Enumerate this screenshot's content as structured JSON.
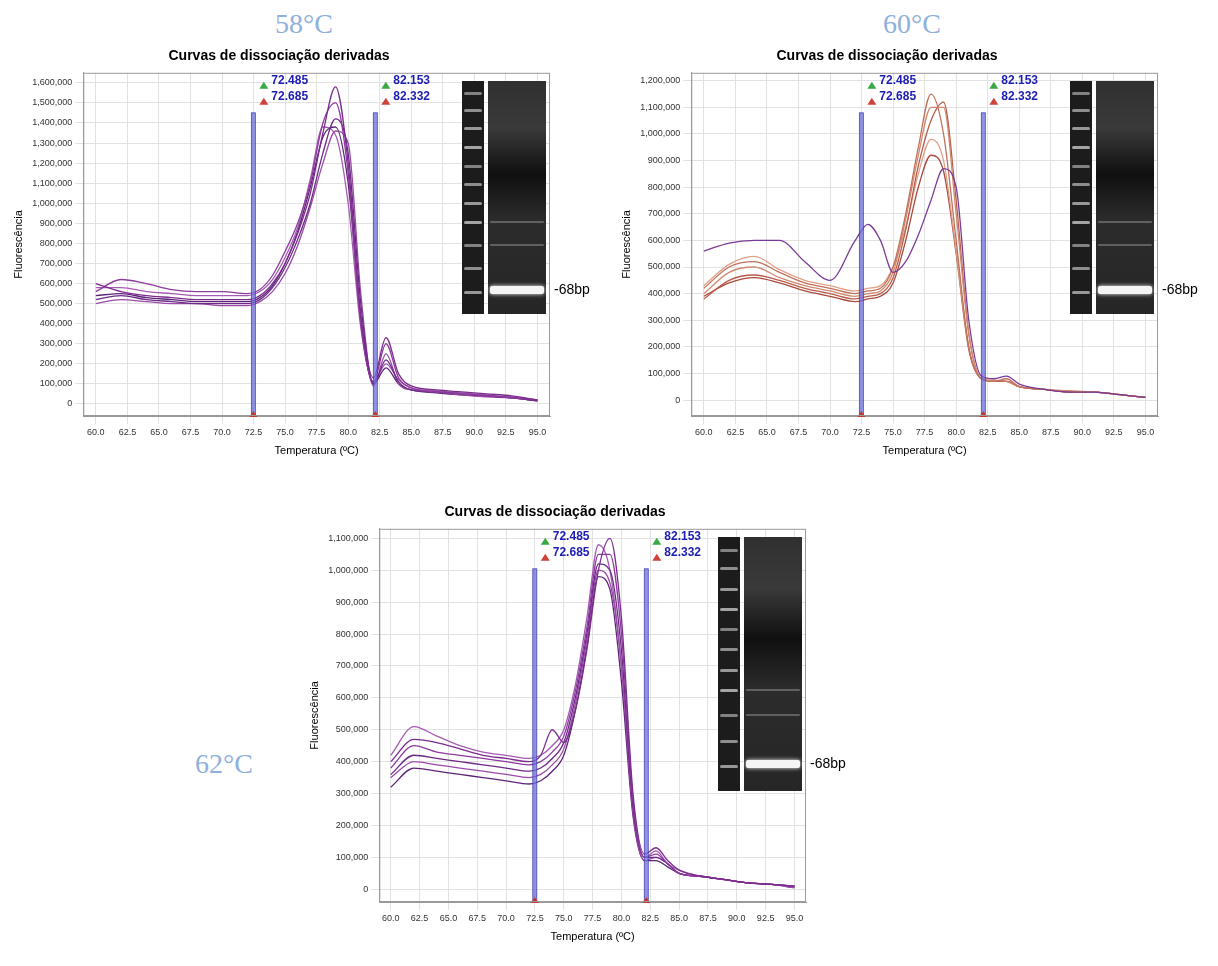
{
  "chart_data": [
    {
      "type": "line",
      "label": "58°C",
      "title": "Curvas de dissociação derivadas",
      "xlabel": "Temperatura (ºC)",
      "ylabel": "Fluorescência",
      "grid": true,
      "x": [
        60,
        62,
        64,
        66,
        68,
        70,
        72,
        73,
        74,
        75,
        76,
        77,
        78,
        79,
        80,
        81,
        82,
        83,
        84,
        85,
        87,
        89,
        91,
        93,
        95
      ],
      "xlim": [
        59,
        96
      ],
      "xticks": [
        {
          "value": 60,
          "label": "60.0"
        },
        {
          "value": 62.5,
          "label": "62.5"
        },
        {
          "value": 65,
          "label": "65.0"
        },
        {
          "value": 67.5,
          "label": "67.5"
        },
        {
          "value": 70,
          "label": "70.0"
        },
        {
          "value": 72.5,
          "label": "72.5"
        },
        {
          "value": 75,
          "label": "75.0"
        },
        {
          "value": 77.5,
          "label": "77.5"
        },
        {
          "value": 80,
          "label": "80.0"
        },
        {
          "value": 82.5,
          "label": "82.5"
        },
        {
          "value": 85,
          "label": "85.0"
        },
        {
          "value": 87.5,
          "label": "87.5"
        },
        {
          "value": 90,
          "label": "90.0"
        },
        {
          "value": 92.5,
          "label": "92.5"
        },
        {
          "value": 95,
          "label": "95.0"
        }
      ],
      "ylim": [
        -60000,
        1650000
      ],
      "yticks": [
        0,
        {
          "value": 100000,
          "label": "100,000"
        },
        {
          "value": 200000,
          "label": "200,000"
        },
        {
          "value": 300000,
          "label": "300,000"
        },
        {
          "value": 400000,
          "label": "400,000"
        },
        {
          "value": 500000,
          "label": "500,000"
        },
        {
          "value": 600000,
          "label": "600,000"
        },
        {
          "value": 700000,
          "label": "700,000"
        },
        {
          "value": 800000,
          "label": "800,000"
        },
        {
          "value": 900000,
          "label": "900,000"
        },
        {
          "value": 1000000,
          "label": "1,000,000"
        },
        {
          "value": 1100000,
          "label": "1,100,000"
        },
        {
          "value": 1200000,
          "label": "1,200,000"
        },
        {
          "value": 1300000,
          "label": "1,300,000"
        },
        {
          "value": 1400000,
          "label": "1,400,000"
        },
        {
          "value": 1500000,
          "label": "1,500,000"
        },
        {
          "value": 1600000,
          "label": "1,600,000"
        }
      ],
      "markers": [
        {
          "values": [
            72.485,
            72.685
          ]
        },
        {
          "values": [
            82.153,
            82.332
          ]
        }
      ],
      "gel_label": "-68bp",
      "series": [
        {
          "color": "#7b2d8e",
          "values": [
            600000,
            560000,
            540000,
            530000,
            520000,
            520000,
            520000,
            540000,
            600000,
            700000,
            850000,
            1050000,
            1350000,
            1580000,
            1200000,
            450000,
            130000,
            330000,
            150000,
            90000,
            70000,
            60000,
            50000,
            40000,
            20000
          ]
        },
        {
          "color": "#8e3a9f",
          "values": [
            560000,
            620000,
            600000,
            570000,
            560000,
            560000,
            550000,
            570000,
            640000,
            760000,
            900000,
            1100000,
            1400000,
            1500000,
            1150000,
            400000,
            110000,
            300000,
            130000,
            80000,
            60000,
            50000,
            40000,
            30000,
            20000
          ]
        },
        {
          "color": "#6a2a85",
          "values": [
            520000,
            540000,
            520000,
            510000,
            500000,
            500000,
            500000,
            520000,
            580000,
            680000,
            820000,
            1000000,
            1250000,
            1420000,
            1250000,
            500000,
            100000,
            220000,
            110000,
            70000,
            60000,
            50000,
            40000,
            30000,
            15000
          ]
        },
        {
          "color": "#9b4aa8",
          "values": [
            500000,
            520000,
            510000,
            500000,
            500000,
            490000,
            490000,
            510000,
            560000,
            650000,
            790000,
            980000,
            1200000,
            1360000,
            1300000,
            550000,
            90000,
            250000,
            100000,
            70000,
            60000,
            45000,
            35000,
            30000,
            15000
          ]
        },
        {
          "color": "#5c2478",
          "values": [
            540000,
            550000,
            530000,
            520000,
            510000,
            510000,
            510000,
            530000,
            590000,
            700000,
            860000,
            1080000,
            1330000,
            1380000,
            1100000,
            420000,
            100000,
            180000,
            100000,
            70000,
            55000,
            45000,
            40000,
            30000,
            15000
          ]
        },
        {
          "color": "#a55bb3",
          "values": [
            580000,
            580000,
            560000,
            550000,
            540000,
            540000,
            540000,
            560000,
            620000,
            730000,
            880000,
            1120000,
            1380000,
            1340000,
            1000000,
            380000,
            110000,
            200000,
            120000,
            80000,
            65000,
            55000,
            45000,
            35000,
            20000
          ]
        }
      ]
    },
    {
      "type": "line",
      "label": "60°C",
      "title": "Curvas de dissociação derivadas",
      "xlabel": "Temperatura (ºC)",
      "ylabel": "Fluorescência",
      "grid": true,
      "x": [
        60,
        62,
        64,
        66,
        68,
        70,
        72,
        73,
        74,
        75,
        76,
        77,
        78,
        79,
        80,
        81,
        82,
        83,
        84,
        85,
        87,
        89,
        91,
        93,
        95
      ],
      "xlim": [
        59,
        96
      ],
      "xticks": [
        {
          "value": 60,
          "label": "60.0"
        },
        {
          "value": 62.5,
          "label": "62.5"
        },
        {
          "value": 65,
          "label": "65.0"
        },
        {
          "value": 67.5,
          "label": "67.5"
        },
        {
          "value": 70,
          "label": "70.0"
        },
        {
          "value": 72.5,
          "label": "72.5"
        },
        {
          "value": 75,
          "label": "75.0"
        },
        {
          "value": 77.5,
          "label": "77.5"
        },
        {
          "value": 80,
          "label": "80.0"
        },
        {
          "value": 82.5,
          "label": "82.5"
        },
        {
          "value": 85,
          "label": "85.0"
        },
        {
          "value": 87.5,
          "label": "87.5"
        },
        {
          "value": 90,
          "label": "90.0"
        },
        {
          "value": 92.5,
          "label": "92.5"
        },
        {
          "value": 95,
          "label": "95.0"
        }
      ],
      "ylim": [
        -60000,
        1230000
      ],
      "yticks": [
        0,
        {
          "value": 100000,
          "label": "100,000"
        },
        {
          "value": 200000,
          "label": "200,000"
        },
        {
          "value": 300000,
          "label": "300,000"
        },
        {
          "value": 400000,
          "label": "400,000"
        },
        {
          "value": 500000,
          "label": "500,000"
        },
        {
          "value": 600000,
          "label": "600,000"
        },
        {
          "value": 700000,
          "label": "700,000"
        },
        {
          "value": 800000,
          "label": "800,000"
        },
        {
          "value": 900000,
          "label": "900,000"
        },
        {
          "value": 1000000,
          "label": "1,000,000"
        },
        {
          "value": 1100000,
          "label": "1,100,000"
        },
        {
          "value": 1200000,
          "label": "1,200,000"
        }
      ],
      "markers": [
        {
          "values": [
            72.485,
            72.685
          ]
        },
        {
          "values": [
            82.153,
            82.332
          ]
        }
      ],
      "gel_label": "-68bp",
      "series": [
        {
          "color": "#7b3a96",
          "values": [
            560000,
            590000,
            600000,
            600000,
            520000,
            450000,
            600000,
            660000,
            600000,
            480000,
            520000,
            620000,
            750000,
            870000,
            800000,
            300000,
            90000,
            80000,
            90000,
            60000,
            40000,
            30000,
            30000,
            20000,
            10000
          ]
        },
        {
          "color": "#c0705a",
          "values": [
            420000,
            500000,
            520000,
            480000,
            440000,
            420000,
            400000,
            410000,
            420000,
            500000,
            700000,
            950000,
            1150000,
            1000000,
            600000,
            200000,
            80000,
            70000,
            80000,
            50000,
            40000,
            30000,
            30000,
            20000,
            10000
          ]
        },
        {
          "color": "#d08a70",
          "values": [
            400000,
            480000,
            500000,
            460000,
            430000,
            410000,
            390000,
            400000,
            410000,
            480000,
            680000,
            920000,
            1100000,
            1100000,
            700000,
            250000,
            80000,
            75000,
            70000,
            50000,
            40000,
            35000,
            30000,
            20000,
            10000
          ]
        },
        {
          "color": "#b85c4a",
          "values": [
            380000,
            450000,
            470000,
            450000,
            420000,
            400000,
            380000,
            390000,
            400000,
            460000,
            640000,
            880000,
            1050000,
            1120000,
            750000,
            250000,
            80000,
            70000,
            70000,
            50000,
            40000,
            30000,
            30000,
            20000,
            10000
          ]
        },
        {
          "color": "#e0a088",
          "values": [
            430000,
            510000,
            540000,
            490000,
            450000,
            430000,
            410000,
            420000,
            430000,
            500000,
            650000,
            850000,
            980000,
            900000,
            560000,
            200000,
            80000,
            70000,
            70000,
            50000,
            40000,
            30000,
            30000,
            20000,
            10000
          ]
        },
        {
          "color": "#a84a3c",
          "values": [
            390000,
            440000,
            460000,
            440000,
            410000,
            390000,
            370000,
            380000,
            390000,
            440000,
            600000,
            800000,
            920000,
            860000,
            550000,
            190000,
            80000,
            70000,
            70000,
            50000,
            40000,
            30000,
            30000,
            20000,
            10000
          ]
        }
      ]
    },
    {
      "type": "line",
      "label": "62°C",
      "title": "Curvas de dissociação derivadas",
      "xlabel": "Temperatura (ºC)",
      "ylabel": "Fluorescência",
      "grid": true,
      "x": [
        60,
        62,
        64,
        66,
        68,
        70,
        72,
        73,
        74,
        75,
        76,
        77,
        78,
        79,
        80,
        81,
        82,
        83,
        84,
        85,
        87,
        89,
        91,
        93,
        95
      ],
      "xlim": [
        59,
        96
      ],
      "xticks": [
        {
          "value": 60,
          "label": "60.0"
        },
        {
          "value": 62.5,
          "label": "62.5"
        },
        {
          "value": 65,
          "label": "65.0"
        },
        {
          "value": 67.5,
          "label": "67.5"
        },
        {
          "value": 70,
          "label": "70.0"
        },
        {
          "value": 72.5,
          "label": "72.5"
        },
        {
          "value": 75,
          "label": "75.0"
        },
        {
          "value": 77.5,
          "label": "77.5"
        },
        {
          "value": 80,
          "label": "80.0"
        },
        {
          "value": 82.5,
          "label": "82.5"
        },
        {
          "value": 85,
          "label": "85.0"
        },
        {
          "value": 87.5,
          "label": "87.5"
        },
        {
          "value": 90,
          "label": "90.0"
        },
        {
          "value": 92.5,
          "label": "92.5"
        },
        {
          "value": 95,
          "label": "95.0"
        }
      ],
      "ylim": [
        -40000,
        1130000
      ],
      "yticks": [
        0,
        {
          "value": 100000,
          "label": "100,000"
        },
        {
          "value": 200000,
          "label": "200,000"
        },
        {
          "value": 300000,
          "label": "300,000"
        },
        {
          "value": 400000,
          "label": "400,000"
        },
        {
          "value": 500000,
          "label": "500,000"
        },
        {
          "value": 600000,
          "label": "600,000"
        },
        {
          "value": 700000,
          "label": "700,000"
        },
        {
          "value": 800000,
          "label": "800,000"
        },
        {
          "value": 900000,
          "label": "900,000"
        },
        {
          "value": 1000000,
          "label": "1,000,000"
        },
        {
          "value": 1100000,
          "label": "1,100,000"
        }
      ],
      "markers": [
        {
          "values": [
            72.485,
            72.685
          ]
        },
        {
          "values": [
            82.153,
            82.332
          ]
        }
      ],
      "gel_label": "-68bp",
      "series": [
        {
          "color": "#7b2d8e",
          "values": [
            400000,
            470000,
            460000,
            440000,
            420000,
            410000,
            400000,
            420000,
            500000,
            460000,
            560000,
            750000,
            1000000,
            1100000,
            850000,
            300000,
            110000,
            130000,
            90000,
            60000,
            40000,
            30000,
            20000,
            15000,
            10000
          ]
        },
        {
          "color": "#8e3a9f",
          "values": [
            380000,
            450000,
            430000,
            420000,
            410000,
            400000,
            390000,
            400000,
            430000,
            480000,
            620000,
            820000,
            1050000,
            1050000,
            800000,
            280000,
            100000,
            110000,
            80000,
            50000,
            40000,
            30000,
            20000,
            15000,
            10000
          ]
        },
        {
          "color": "#6a2a85",
          "values": [
            360000,
            420000,
            410000,
            400000,
            390000,
            380000,
            370000,
            380000,
            410000,
            460000,
            600000,
            800000,
            1020000,
            1000000,
            750000,
            260000,
            100000,
            100000,
            80000,
            50000,
            40000,
            30000,
            20000,
            15000,
            10000
          ]
        },
        {
          "color": "#9b4aa8",
          "values": [
            350000,
            400000,
            390000,
            380000,
            370000,
            360000,
            350000,
            360000,
            390000,
            440000,
            580000,
            780000,
            1000000,
            960000,
            700000,
            240000,
            90000,
            100000,
            80000,
            50000,
            40000,
            30000,
            20000,
            15000,
            5000
          ]
        },
        {
          "color": "#5c2478",
          "values": [
            320000,
            380000,
            370000,
            360000,
            350000,
            340000,
            330000,
            340000,
            370000,
            420000,
            560000,
            760000,
            980000,
            940000,
            650000,
            230000,
            90000,
            90000,
            70000,
            50000,
            40000,
            30000,
            20000,
            15000,
            5000
          ]
        },
        {
          "color": "#a55bb3",
          "values": [
            420000,
            510000,
            480000,
            450000,
            430000,
            420000,
            410000,
            420000,
            450000,
            500000,
            640000,
            850000,
            1080000,
            1000000,
            700000,
            250000,
            100000,
            120000,
            80000,
            60000,
            40000,
            30000,
            20000,
            15000,
            10000
          ]
        }
      ]
    }
  ]
}
